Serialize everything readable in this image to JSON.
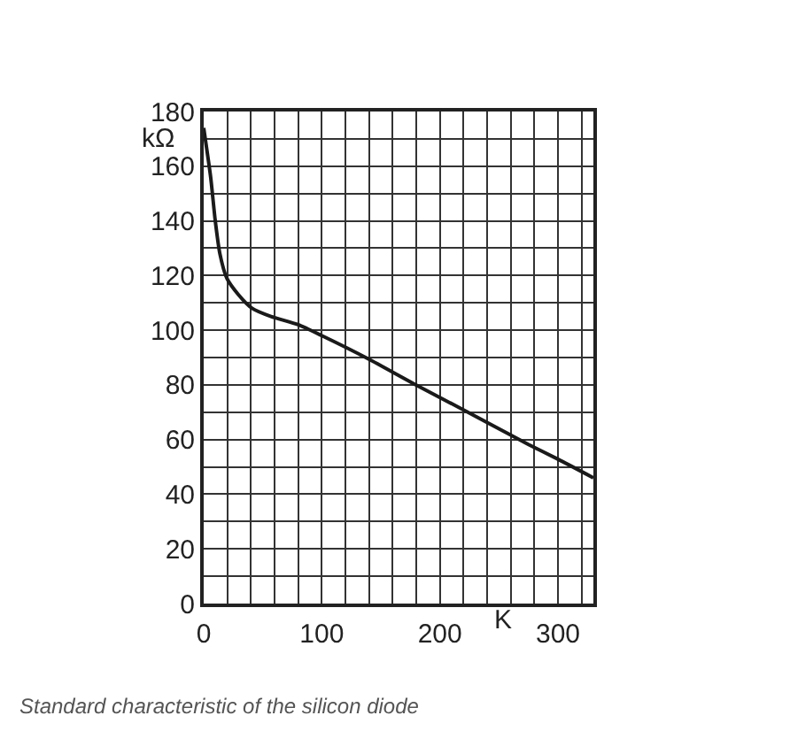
{
  "chart_data": {
    "type": "line",
    "xlabel": "K",
    "ylabel": "kΩ",
    "annotations": [
      "Standard characteristic of the silicon diode"
    ],
    "x": [
      0,
      5.9,
      9.8,
      13.7,
      19.6,
      29.4,
      41,
      57,
      80,
      100,
      139,
      178,
      218,
      275,
      300,
      330
    ],
    "series": [
      {
        "color": "#1a1a1a",
        "values": [
          174,
          156,
          140,
          128,
          119,
          113,
          108,
          105,
          102,
          98,
          89.6,
          80.4,
          71.3,
          58.2,
          52.8,
          46
        ]
      }
    ],
    "xlim": [
      0,
      330
    ],
    "xticks": [
      0,
      {
        "value": 20,
        "label": null
      },
      {
        "value": 40,
        "label": null
      },
      {
        "value": 60,
        "label": null
      },
      {
        "value": 80,
        "label": null
      },
      100,
      {
        "value": 120,
        "label": null
      },
      {
        "value": 140,
        "label": null
      },
      {
        "value": 160,
        "label": null
      },
      {
        "value": 180,
        "label": null
      },
      200,
      {
        "value": 220,
        "label": null
      },
      {
        "value": 240,
        "label": null
      },
      {
        "value": 260,
        "label": null
      },
      {
        "value": 280,
        "label": null
      },
      300,
      {
        "value": 320,
        "label": null
      }
    ],
    "ylim": [
      0,
      180
    ],
    "yticks": [
      0,
      {
        "value": 10,
        "label": null
      },
      20,
      {
        "value": 30,
        "label": null
      },
      40,
      {
        "value": 50,
        "label": null
      },
      60,
      {
        "value": 70,
        "label": null
      },
      80,
      {
        "value": 90,
        "label": null
      },
      100,
      {
        "value": 110,
        "label": null
      },
      120,
      {
        "value": 130,
        "label": null
      },
      140,
      {
        "value": 150,
        "label": null
      },
      160,
      {
        "value": 170,
        "label": null
      },
      180
    ],
    "grid": true,
    "marker": "none",
    "line_style": "solid"
  }
}
